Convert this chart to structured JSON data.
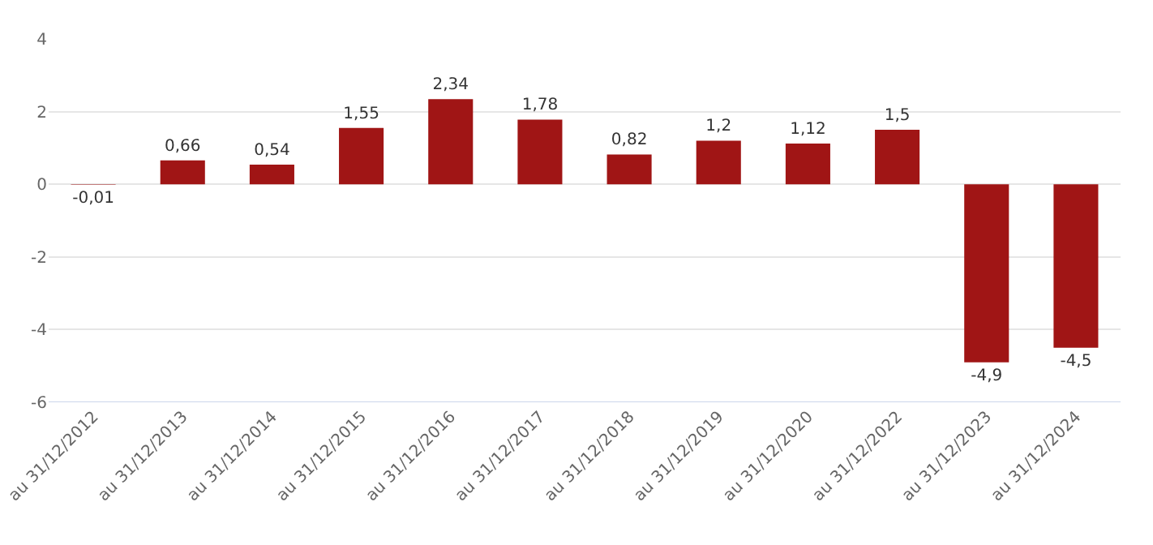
{
  "chart_data": {
    "type": "bar",
    "categories": [
      "au 31/12/2012",
      "au 31/12/2013",
      "au 31/12/2014",
      "au 31/12/2015",
      "au 31/12/2016",
      "au 31/12/2017",
      "au 31/12/2018",
      "au 31/12/2019",
      "au 31/12/2020",
      "au 31/12/2022",
      "au 31/12/2023",
      "au 31/12/2024"
    ],
    "values": [
      -0.01,
      0.66,
      0.54,
      1.55,
      2.34,
      1.78,
      0.82,
      1.2,
      1.12,
      1.5,
      -4.9,
      -4.5
    ],
    "value_labels": [
      "-0,01",
      "0,66",
      "0,54",
      "1,55",
      "2,34",
      "1,78",
      "0,82",
      "1,2",
      "1,12",
      "1,5",
      "-4,9",
      "-4,5"
    ],
    "color": "#a01515",
    "ylim": [
      -6,
      4
    ],
    "yticks": [
      -6,
      -4,
      -2,
      0,
      2,
      4
    ],
    "grid": "y",
    "legend": false
  }
}
